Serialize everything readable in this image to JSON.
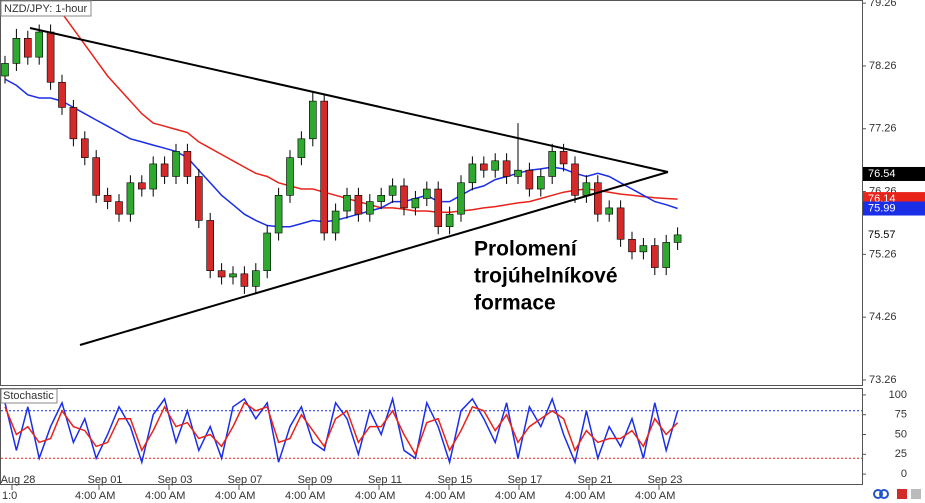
{
  "chart_data": [
    {
      "type": "candlestick",
      "title": "NZD/JPY: 1-hour",
      "annotation": [
        "Prolomení",
        "trojúhelníkové",
        "formace"
      ],
      "date_labels": [
        "Aug 28",
        "Sep 01",
        "Sep 03",
        "Sep 07",
        "Sep 09",
        "Sep 11",
        "Sep 15",
        "Sep 17",
        "Sep 21",
        "Sep 23"
      ],
      "time_labels": [
        "1:0",
        "4:00 AM",
        "4:00 AM",
        "4:00 AM",
        "4:00 AM",
        "4:00 AM",
        "4:00 AM",
        "4:00 AM",
        "4:00 AM",
        "4:00 AM"
      ],
      "up_color": "#2ea82e",
      "down_color": "#d42a2a",
      "open": [
        78.1,
        78.3,
        78.7,
        78.4,
        78.8,
        78.0,
        77.6,
        77.1,
        76.8,
        76.2,
        76.1,
        75.9,
        76.4,
        76.3,
        76.7,
        76.5,
        76.9,
        76.5,
        75.8,
        75.0,
        74.9,
        74.95,
        74.75,
        75.0,
        75.6,
        76.2,
        76.8,
        77.1,
        77.7,
        75.6,
        75.95,
        76.2,
        75.9,
        76.1,
        76.2,
        76.35,
        76.0,
        76.15,
        76.3,
        75.7,
        75.9,
        76.4,
        76.7,
        76.6,
        76.75,
        76.5,
        76.6,
        76.3,
        76.5,
        76.9,
        76.7,
        76.2,
        76.4,
        75.9,
        76.0,
        75.5,
        75.3,
        75.4,
        75.05,
        75.45
      ],
      "high": [
        78.42,
        78.85,
        78.82,
        78.92,
        78.92,
        78.12,
        77.72,
        77.22,
        76.92,
        76.32,
        76.22,
        76.52,
        76.52,
        76.82,
        76.82,
        77.02,
        77.02,
        76.62,
        75.92,
        75.12,
        75.07,
        75.07,
        75.12,
        75.72,
        76.32,
        76.92,
        77.22,
        77.85,
        77.82,
        76.07,
        76.32,
        76.32,
        76.22,
        76.32,
        76.47,
        76.47,
        76.27,
        76.42,
        76.42,
        76.02,
        76.52,
        76.82,
        76.82,
        76.87,
        76.87,
        77.35,
        76.72,
        76.62,
        77.02,
        77.02,
        76.82,
        76.52,
        76.52,
        76.12,
        76.12,
        75.62,
        75.52,
        75.52,
        75.57,
        75.69
      ],
      "low": [
        77.98,
        78.18,
        78.28,
        78.28,
        77.88,
        77.48,
        76.98,
        76.68,
        76.08,
        75.98,
        75.78,
        75.78,
        76.18,
        76.18,
        76.38,
        76.38,
        76.38,
        75.68,
        74.88,
        74.78,
        74.78,
        74.63,
        74.63,
        74.88,
        75.48,
        76.08,
        76.68,
        76.98,
        75.48,
        75.48,
        75.83,
        75.78,
        75.78,
        75.98,
        76.08,
        75.88,
        75.88,
        76.03,
        75.58,
        75.58,
        75.78,
        76.28,
        76.48,
        76.48,
        76.38,
        76.38,
        76.18,
        76.18,
        76.38,
        76.58,
        76.08,
        76.08,
        75.78,
        75.78,
        75.38,
        75.18,
        75.18,
        74.93,
        74.93,
        75.33
      ],
      "close": [
        78.3,
        78.7,
        78.4,
        78.8,
        78.0,
        77.6,
        77.1,
        76.8,
        76.2,
        76.1,
        75.9,
        76.4,
        76.3,
        76.7,
        76.5,
        76.9,
        76.5,
        75.8,
        75.0,
        74.9,
        74.95,
        74.75,
        75.0,
        75.6,
        76.2,
        76.8,
        77.1,
        77.7,
        75.6,
        75.95,
        76.2,
        75.9,
        76.1,
        76.2,
        76.35,
        76.0,
        76.15,
        76.3,
        75.7,
        75.9,
        76.4,
        76.7,
        76.6,
        76.75,
        76.5,
        76.6,
        76.3,
        76.5,
        76.9,
        76.7,
        76.2,
        76.4,
        75.9,
        76.0,
        75.5,
        75.3,
        75.4,
        75.05,
        75.45,
        75.57
      ],
      "series": [
        {
          "color": "#e8231a",
          "values": [
            null,
            null,
            null,
            null,
            null,
            79.1,
            78.85,
            78.6,
            78.35,
            78.1,
            77.9,
            77.7,
            77.5,
            77.35,
            77.3,
            77.25,
            77.2,
            77.05,
            76.95,
            76.85,
            76.75,
            76.65,
            76.55,
            76.5,
            76.4,
            76.35,
            76.3,
            76.3,
            76.25,
            76.2,
            76.15,
            76.1,
            76.05,
            76.0,
            76.0,
            75.98,
            75.95,
            75.95,
            75.93,
            75.93,
            75.95,
            75.97,
            76.0,
            76.02,
            76.05,
            76.08,
            76.1,
            76.15,
            76.2,
            76.25,
            76.28,
            76.3,
            76.28,
            76.25,
            76.22,
            76.2,
            76.18,
            76.16,
            76.15,
            76.14
          ]
        },
        {
          "color": "#1a2ee8",
          "values": [
            78.05,
            77.95,
            77.8,
            77.75,
            77.75,
            77.7,
            77.6,
            77.5,
            77.4,
            77.3,
            77.2,
            77.1,
            77.05,
            77.0,
            76.95,
            76.9,
            76.8,
            76.6,
            76.4,
            76.2,
            76.05,
            75.9,
            75.8,
            75.72,
            75.7,
            75.7,
            75.75,
            75.8,
            75.78,
            75.8,
            75.85,
            75.9,
            75.95,
            76.0,
            76.1,
            76.1,
            76.15,
            76.2,
            76.1,
            76.1,
            76.2,
            76.3,
            76.35,
            76.45,
            76.5,
            76.55,
            76.6,
            76.62,
            76.65,
            76.62,
            76.55,
            76.5,
            76.55,
            76.5,
            76.4,
            76.3,
            76.2,
            76.1,
            76.05,
            75.99
          ]
        }
      ],
      "apex": 76.54,
      "ylim": [
        73.18,
        79.31
      ],
      "yticks": [
        79.26,
        78.26,
        77.26,
        76.26,
        75.26,
        74.26,
        73.26
      ]
    },
    {
      "type": "line",
      "title": "Stochastic",
      "series": [
        {
          "color": "#1a2ee8",
          "values": [
            90,
            30,
            85,
            20,
            60,
            90,
            40,
            70,
            20,
            50,
            85,
            60,
            15,
            75,
            95,
            40,
            80,
            30,
            60,
            20,
            85,
            95,
            70,
            90,
            15,
            60,
            85,
            40,
            30,
            90,
            70,
            25,
            80,
            50,
            95,
            30,
            20,
            90,
            60,
            15,
            80,
            95,
            70,
            40,
            90,
            20,
            85,
            60,
            95,
            50,
            15,
            80,
            20,
            60,
            35,
            70,
            20,
            90,
            30,
            80
          ]
        },
        {
          "color": "#e8231a",
          "values": [
            85,
            50,
            60,
            40,
            45,
            80,
            60,
            55,
            35,
            40,
            70,
            70,
            30,
            55,
            85,
            60,
            65,
            45,
            50,
            35,
            60,
            90,
            80,
            85,
            40,
            45,
            75,
            55,
            35,
            70,
            80,
            40,
            60,
            60,
            80,
            50,
            25,
            65,
            70,
            30,
            55,
            85,
            80,
            55,
            75,
            40,
            60,
            70,
            80,
            70,
            30,
            55,
            40,
            45,
            45,
            55,
            35,
            70,
            50,
            65
          ]
        }
      ],
      "levels": [
        {
          "value": 80,
          "color": "#1a2ee8"
        },
        {
          "value": 20,
          "color": "#e8231a"
        }
      ],
      "ylim": [
        -12.5,
        108.75
      ],
      "yticks": [
        100,
        75,
        50,
        25,
        0
      ]
    }
  ]
}
